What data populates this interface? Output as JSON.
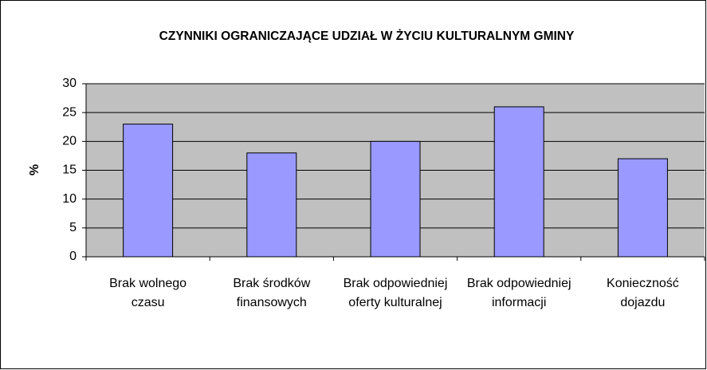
{
  "chart_data": {
    "type": "bar",
    "title": "CZYNNIKI OGRANICZAJĄCE UDZIAŁ W ŻYCIU KULTURALNYM GMINY",
    "y_label": "%",
    "categories": [
      "Brak wolnego czasu",
      "Brak środków finansowych",
      "Brak odpowiedniej oferty kulturalnej",
      "Brak odpowiedniej informacji",
      "Konieczność dojazdu"
    ],
    "values": [
      23,
      18,
      20,
      26,
      17
    ],
    "color": "#9999ff",
    "ylim": [
      0,
      30
    ],
    "yticks": [
      0,
      5,
      10,
      15,
      20,
      25,
      30
    ],
    "grid": true
  }
}
